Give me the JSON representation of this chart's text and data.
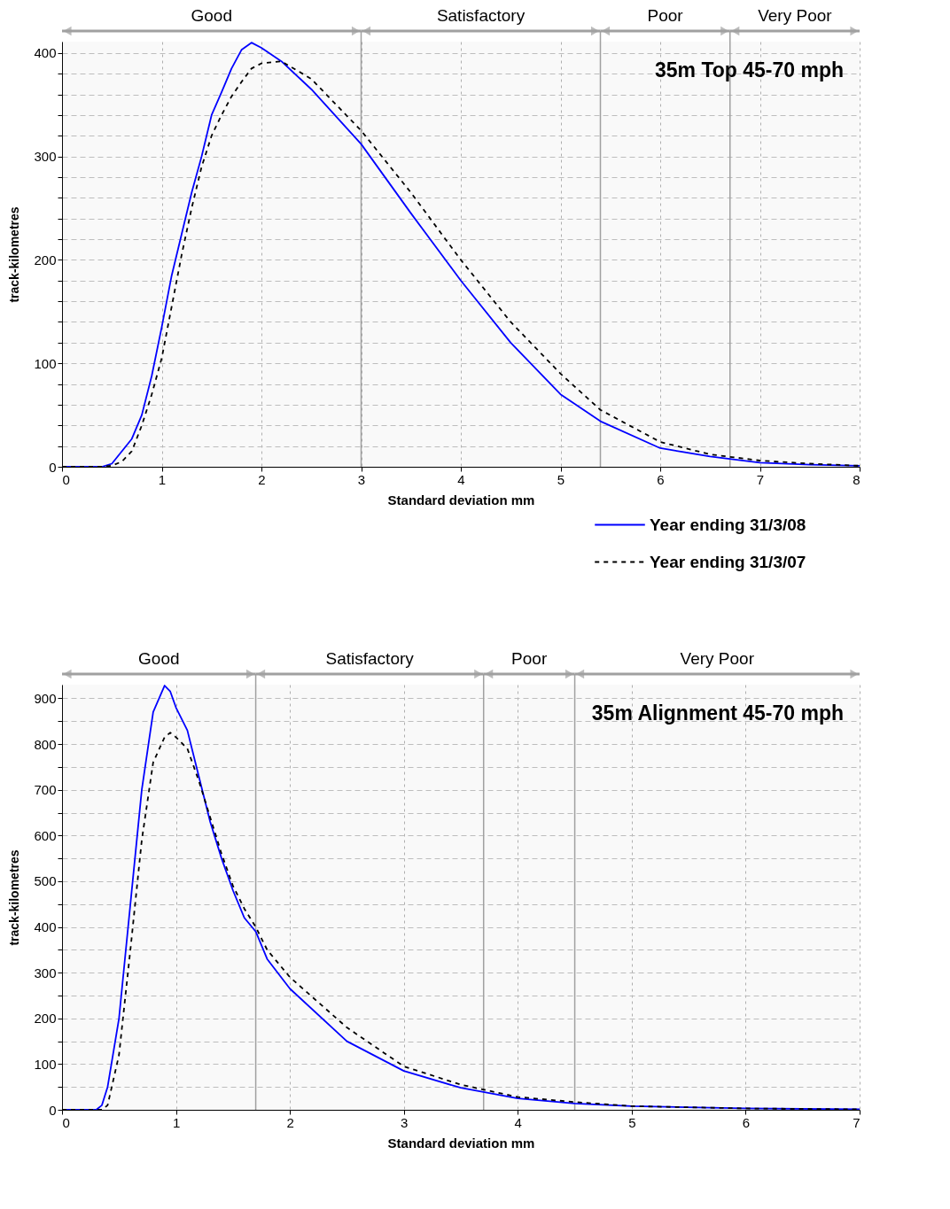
{
  "chart_data": [
    {
      "type": "line",
      "title": "35m Top 45-70 mph",
      "xlabel": "Standard deviation mm",
      "ylabel": "track-kilometres",
      "xlim": [
        0,
        8
      ],
      "xticks": [
        0,
        1,
        2,
        3,
        4,
        5,
        6,
        7,
        8
      ],
      "ylim": [
        0,
        411
      ],
      "yticks": [
        0,
        {
          "value": 20,
          "label": null
        },
        {
          "value": 40,
          "label": null
        },
        {
          "value": 60,
          "label": null
        },
        {
          "value": 80,
          "label": null
        },
        100,
        {
          "value": 120,
          "label": null
        },
        {
          "value": 140,
          "label": null
        },
        {
          "value": 160,
          "label": null
        },
        {
          "value": 180,
          "label": null
        },
        200,
        {
          "value": 220,
          "label": null
        },
        {
          "value": 240,
          "label": null
        },
        {
          "value": 260,
          "label": null
        },
        {
          "value": 280,
          "label": null
        },
        300,
        {
          "value": 320,
          "label": null
        },
        {
          "value": 340,
          "label": null
        },
        {
          "value": 360,
          "label": null
        },
        {
          "value": 380,
          "label": null
        },
        400
      ],
      "grid": true,
      "legend": "bottom right",
      "marker": "none",
      "x": [
        0,
        0.4,
        0.5,
        0.6,
        0.7,
        0.8,
        0.9,
        1.0,
        1.1,
        1.2,
        1.3,
        1.4,
        1.5,
        1.6,
        1.7,
        1.8,
        1.9,
        2.0,
        2.2,
        2.5,
        3.0,
        3.5,
        4.0,
        4.5,
        5.0,
        5.4,
        6.0,
        6.5,
        7.0,
        7.5,
        8.0
      ],
      "series": [
        {
          "name": "Year ending 31/3/08",
          "color": "#0000ff",
          "line_style": "solid",
          "values": [
            0,
            0,
            3,
            15,
            27,
            50,
            88,
            135,
            185,
            225,
            265,
            300,
            340,
            362,
            385,
            403,
            410,
            405,
            392,
            365,
            312,
            245,
            180,
            120,
            70,
            44,
            18,
            10,
            4,
            2,
            1
          ]
        },
        {
          "name": "Year ending 31/3/07",
          "color": "#000000",
          "line_style": "dashed",
          "values": [
            0,
            0,
            1,
            5,
            15,
            40,
            70,
            105,
            155,
            205,
            250,
            290,
            320,
            340,
            358,
            372,
            385,
            390,
            392,
            375,
            325,
            265,
            200,
            140,
            90,
            55,
            24,
            12,
            6,
            3,
            1
          ]
        }
      ],
      "bands": [
        {
          "axis": "x",
          "from": 0,
          "to": 3,
          "label": "Good"
        },
        {
          "axis": "x",
          "from": 3,
          "to": 5.4,
          "label": "Satisfactory"
        },
        {
          "axis": "x",
          "from": 5.4,
          "to": 6.7,
          "label": "Poor"
        },
        {
          "axis": "x",
          "from": 6.7,
          "to": 8,
          "label": "Very Poor"
        }
      ]
    },
    {
      "type": "line",
      "title": "35m Alignment 45-70 mph",
      "xlabel": "Standard deviation mm",
      "ylabel": "track-kilometres",
      "xlim": [
        0,
        7
      ],
      "xticks": [
        0,
        1,
        2,
        3,
        4,
        5,
        6,
        7
      ],
      "ylim": [
        0,
        930
      ],
      "yticks": [
        0,
        {
          "value": 50,
          "label": null
        },
        100,
        {
          "value": 150,
          "label": null
        },
        200,
        {
          "value": 250,
          "label": null
        },
        300,
        {
          "value": 350,
          "label": null
        },
        400,
        {
          "value": 450,
          "label": null
        },
        500,
        {
          "value": 550,
          "label": null
        },
        600,
        {
          "value": 650,
          "label": null
        },
        700,
        {
          "value": 750,
          "label": null
        },
        800,
        {
          "value": 850,
          "label": null
        },
        900
      ],
      "grid": true,
      "marker": "none",
      "x": [
        0,
        0.3,
        0.35,
        0.4,
        0.5,
        0.6,
        0.7,
        0.8,
        0.9,
        0.95,
        1.0,
        1.1,
        1.2,
        1.3,
        1.4,
        1.5,
        1.6,
        1.7,
        1.8,
        2.0,
        2.5,
        3.0,
        3.5,
        4.0,
        4.5,
        5.0,
        6.0,
        7.0
      ],
      "series": [
        {
          "color": "#0000ff",
          "line_style": "solid",
          "values": [
            0,
            0,
            10,
            50,
            200,
            450,
            700,
            870,
            928,
            915,
            880,
            830,
            730,
            630,
            550,
            480,
            420,
            390,
            330,
            265,
            150,
            85,
            48,
            25,
            14,
            8,
            3,
            1
          ]
        },
        {
          "color": "#000000",
          "line_style": "dashed",
          "values": [
            0,
            0,
            0,
            10,
            120,
            350,
            590,
            760,
            815,
            825,
            815,
            790,
            720,
            640,
            560,
            490,
            440,
            400,
            350,
            290,
            180,
            95,
            55,
            28,
            17,
            8,
            3,
            1
          ]
        }
      ],
      "bands": [
        {
          "axis": "x",
          "from": 0,
          "to": 1.7,
          "label": "Good"
        },
        {
          "axis": "x",
          "from": 1.7,
          "to": 3.7,
          "label": "Satisfactory"
        },
        {
          "axis": "x",
          "from": 3.7,
          "to": 4.5,
          "label": "Poor"
        },
        {
          "axis": "x",
          "from": 4.5,
          "to": 7,
          "label": "Very Poor"
        }
      ]
    }
  ]
}
